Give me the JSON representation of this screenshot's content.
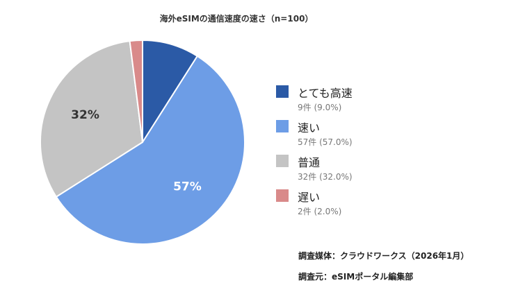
{
  "chart_data": {
    "type": "pie",
    "title": "海外eSIMの通信速度の速さ（n=100）",
    "slices": [
      {
        "name": "とても高速",
        "value": 9,
        "detail": "9件 (9.0%)",
        "color": "#2b5aa6",
        "label": ""
      },
      {
        "name": "速い",
        "value": 57,
        "detail": "57件 (57.0%)",
        "color": "#6d9de6",
        "label": "57%"
      },
      {
        "name": "普通",
        "value": 32,
        "detail": "32件 (32.0%)",
        "color": "#c4c4c4",
        "label": "32%"
      },
      {
        "name": "遅い",
        "value": 2,
        "detail": "2件 (2.0%)",
        "color": "#d98a8a",
        "label": ""
      }
    ],
    "legend_position": "right"
  },
  "footer": {
    "survey_medium": "調査媒体：クラウドワークス（2026年1月）",
    "source": "調査元：eSIMポータル編集部"
  }
}
